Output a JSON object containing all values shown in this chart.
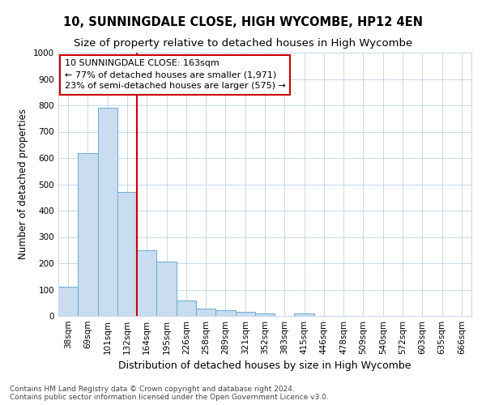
{
  "title1": "10, SUNNINGDALE CLOSE, HIGH WYCOMBE, HP12 4EN",
  "title2": "Size of property relative to detached houses in High Wycombe",
  "xlabel": "Distribution of detached houses by size in High Wycombe",
  "ylabel": "Number of detached properties",
  "categories": [
    "38sqm",
    "69sqm",
    "101sqm",
    "132sqm",
    "164sqm",
    "195sqm",
    "226sqm",
    "258sqm",
    "289sqm",
    "321sqm",
    "352sqm",
    "383sqm",
    "415sqm",
    "446sqm",
    "478sqm",
    "509sqm",
    "540sqm",
    "572sqm",
    "603sqm",
    "635sqm",
    "666sqm"
  ],
  "values": [
    110,
    620,
    790,
    470,
    250,
    205,
    60,
    28,
    22,
    15,
    10,
    0,
    10,
    0,
    0,
    0,
    0,
    0,
    0,
    0,
    0
  ],
  "bar_color": "#c9dcf0",
  "bar_edge_color": "#6aaad4",
  "vline_x_index": 4,
  "vline_color": "#cc0000",
  "annotation_text": "10 SUNNINGDALE CLOSE: 163sqm\n← 77% of detached houses are smaller (1,971)\n23% of semi-detached houses are larger (575) →",
  "annotation_box_color": "#ffffff",
  "annotation_box_edge": "#cc0000",
  "ylim": [
    0,
    1000
  ],
  "yticks": [
    0,
    100,
    200,
    300,
    400,
    500,
    600,
    700,
    800,
    900,
    1000
  ],
  "footer": "Contains HM Land Registry data © Crown copyright and database right 2024.\nContains public sector information licensed under the Open Government Licence v3.0.",
  "bg_color": "#ffffff",
  "grid_color": "#c8d8ec",
  "title1_fontsize": 10.5,
  "title2_fontsize": 9.5,
  "xlabel_fontsize": 9,
  "ylabel_fontsize": 8.5,
  "tick_fontsize": 7.5,
  "annotation_fontsize": 8,
  "footer_fontsize": 6.5
}
